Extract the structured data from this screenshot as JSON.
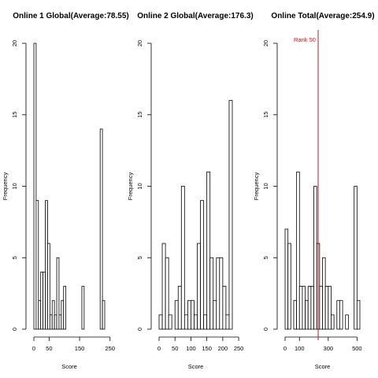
{
  "chart_data": [
    {
      "type": "bar",
      "title": "Online 1 Global(Average:78.55)",
      "xlabel": "Score",
      "ylabel": "Frequency",
      "bin_width": 7.5,
      "bin_start": 0,
      "values": [
        20,
        9,
        2,
        4,
        4,
        9,
        6,
        1,
        2,
        1,
        5,
        1,
        2,
        3,
        0,
        0,
        0,
        0,
        0,
        0,
        0,
        3,
        0,
        0,
        0,
        0,
        0,
        0,
        0,
        14,
        2
      ],
      "xlim": [
        0,
        232.5
      ],
      "xtick_values": [
        0,
        50,
        150,
        250
      ],
      "xticks": [
        "0",
        "50",
        "150",
        "250"
      ],
      "ylim": [
        0,
        20
      ],
      "ytick_values": [
        0,
        5,
        10,
        15,
        20
      ],
      "yticks": [
        "0",
        "5",
        "10",
        "15",
        "20"
      ]
    },
    {
      "type": "bar",
      "title": "Online 2 Global(Average:176.3)",
      "xlabel": "Score",
      "ylabel": "Frequency",
      "bin_width": 10,
      "bin_start": 0,
      "values": [
        1,
        6,
        5,
        1,
        0,
        2,
        3,
        10,
        1,
        2,
        2,
        1,
        6,
        9,
        1,
        11,
        5,
        2,
        5,
        5,
        3,
        1,
        16
      ],
      "xlim": [
        0,
        230
      ],
      "xtick_values": [
        0,
        50,
        100,
        150,
        200,
        250
      ],
      "xticks": [
        "0",
        "50",
        "100",
        "150",
        "200",
        "250"
      ],
      "ylim": [
        0,
        20
      ],
      "ytick_values": [
        0,
        5,
        10,
        15,
        20
      ],
      "yticks": [
        "0",
        "5",
        "10",
        "15",
        "20"
      ]
    },
    {
      "type": "bar",
      "title": "Online Total(Average:254.9)",
      "xlabel": "Score",
      "ylabel": "Frequency",
      "bin_width": 20,
      "bin_start": 0,
      "values": [
        7,
        6,
        0,
        2,
        11,
        3,
        3,
        2,
        3,
        3,
        10,
        6,
        3,
        5,
        3,
        3,
        1,
        0,
        2,
        2,
        0,
        1,
        0,
        0,
        10,
        2
      ],
      "xlim": [
        0,
        520
      ],
      "xtick_values": [
        0,
        100,
        300,
        500
      ],
      "xticks": [
        "0",
        "100",
        "300",
        "500"
      ],
      "ylim": [
        0,
        20
      ],
      "ytick_values": [
        0,
        5,
        10,
        15,
        20
      ],
      "yticks": [
        "0",
        "5",
        "10",
        "15",
        "20"
      ],
      "vline": {
        "x": 230,
        "label": "Rank 50",
        "color": "#b22222",
        "label_color": "#ff0000"
      }
    }
  ]
}
